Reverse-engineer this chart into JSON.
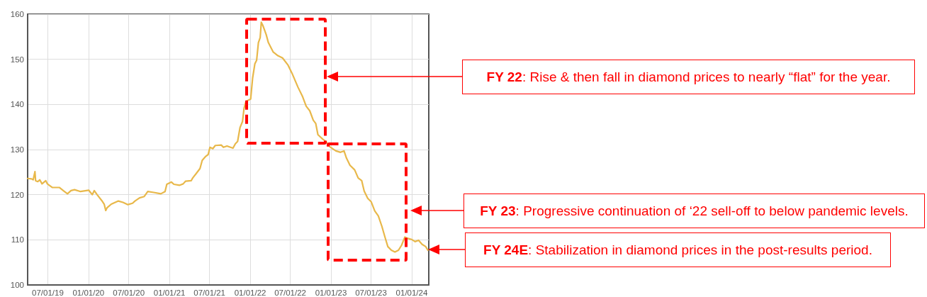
{
  "chart_data": {
    "type": "line",
    "color": "#e8b84a",
    "marker": "none",
    "grid": true,
    "x": [
      "2019-04-01",
      "2019-04-19",
      "2019-04-26",
      "2019-05-04",
      "2019-05-07",
      "2019-05-17",
      "2019-05-26",
      "2019-06-05",
      "2019-06-22",
      "2019-06-29",
      "2019-07-21",
      "2019-08-22",
      "2019-09-12",
      "2019-09-28",
      "2019-10-14",
      "2019-10-30",
      "2019-11-26",
      "2020-01-02",
      "2020-01-18",
      "2020-01-27",
      "2020-02-09",
      "2020-03-01",
      "2020-03-12",
      "2020-03-19",
      "2020-03-25",
      "2020-04-13",
      "2020-05-15",
      "2020-06-05",
      "2020-06-27",
      "2020-07-18",
      "2020-07-29",
      "2020-08-19",
      "2020-09-09",
      "2020-09-25",
      "2020-10-22",
      "2020-11-23",
      "2020-12-12",
      "2020-12-20",
      "2021-01-10",
      "2021-01-21",
      "2021-02-16",
      "2021-03-04",
      "2021-03-15",
      "2021-04-09",
      "2021-04-16",
      "2021-05-02",
      "2021-05-19",
      "2021-05-29",
      "2021-06-14",
      "2021-06-25",
      "2021-07-03",
      "2021-07-16",
      "2021-07-27",
      "2021-08-23",
      "2021-09-02",
      "2021-09-18",
      "2021-10-15",
      "2021-10-26",
      "2021-11-05",
      "2021-11-16",
      "2021-11-27",
      "2021-12-04",
      "2021-12-13",
      "2022-01-03",
      "2022-01-12",
      "2022-01-22",
      "2022-01-30",
      "2022-02-07",
      "2022-02-15",
      "2022-02-20",
      "2022-02-28",
      "2022-03-14",
      "2022-03-24",
      "2022-04-15",
      "2022-05-06",
      "2022-05-27",
      "2022-06-21",
      "2022-07-09",
      "2022-08-05",
      "2022-08-26",
      "2022-09-11",
      "2022-09-27",
      "2022-10-13",
      "2022-10-24",
      "2022-11-03",
      "2022-11-25",
      "2022-12-09",
      "2022-12-27",
      "2023-01-23",
      "2023-02-13",
      "2023-03-01",
      "2023-03-12",
      "2023-03-28",
      "2023-04-18",
      "2023-05-04",
      "2023-05-20",
      "2023-05-31",
      "2023-06-16",
      "2023-07-02",
      "2023-07-18",
      "2023-08-03",
      "2023-08-19",
      "2023-09-02",
      "2023-09-15",
      "2023-10-01",
      "2023-10-17",
      "2023-11-02",
      "2023-11-16",
      "2023-12-01",
      "2023-12-15",
      "2023-12-31",
      "2024-01-16",
      "2024-02-01",
      "2024-02-17",
      "2024-03-04",
      "2024-03-14"
    ],
    "values": [
      123.6,
      123.5,
      123.3,
      125.1,
      123.1,
      122.9,
      123.3,
      122.4,
      123.1,
      122.4,
      121.6,
      121.6,
      120.8,
      120.2,
      120.9,
      121.1,
      120.7,
      121.0,
      120.0,
      120.9,
      120.0,
      118.7,
      117.9,
      116.5,
      117.1,
      117.9,
      118.6,
      118.3,
      117.8,
      118.1,
      118.6,
      119.3,
      119.6,
      120.7,
      120.5,
      120.2,
      120.7,
      122.3,
      122.8,
      122.3,
      122.1,
      122.4,
      123.0,
      123.1,
      123.7,
      124.7,
      125.8,
      127.6,
      128.5,
      128.9,
      130.5,
      130.2,
      130.9,
      131.0,
      130.5,
      130.8,
      130.3,
      131.3,
      131.8,
      134.9,
      136.2,
      139.1,
      140.7,
      141.2,
      145.9,
      149.0,
      149.8,
      153.7,
      154.8,
      158.2,
      157.4,
      155.5,
      153.7,
      151.6,
      150.8,
      150.3,
      148.7,
      146.9,
      143.8,
      141.7,
      139.6,
      138.6,
      136.5,
      135.8,
      133.3,
      132.3,
      131.8,
      130.6,
      129.7,
      129.4,
      129.7,
      128.1,
      126.5,
      125.5,
      123.7,
      123.1,
      120.8,
      119.2,
      118.4,
      116.4,
      115.3,
      113.0,
      110.6,
      108.5,
      107.7,
      107.3,
      107.7,
      108.8,
      110.6,
      110.3,
      110.1,
      109.6,
      109.9,
      109.0,
      108.5,
      107.7
    ],
    "xlim": [
      "2019-04-01",
      "2024-03-18"
    ],
    "ylim": [
      100,
      160
    ],
    "xticks": [
      {
        "value": "2019-07-01",
        "label": "07/01/19"
      },
      {
        "value": "2020-01-01",
        "label": "01/01/20"
      },
      {
        "value": "2020-07-01",
        "label": "07/01/20"
      },
      {
        "value": "2021-01-01",
        "label": "01/01/21"
      },
      {
        "value": "2021-07-01",
        "label": "07/01/21"
      },
      {
        "value": "2022-01-01",
        "label": "01/01/22"
      },
      {
        "value": "2022-07-01",
        "label": "07/01/22"
      },
      {
        "value": "2023-01-01",
        "label": "01/01/23"
      },
      {
        "value": "2023-07-01",
        "label": "07/01/23"
      },
      {
        "value": "2024-01-01",
        "label": "01/01/24"
      }
    ],
    "yticks": [
      100,
      110,
      120,
      130,
      140,
      150,
      160
    ],
    "annotations": [
      "FY 22: Rise & then fall in diamond prices to nearly “flat” for the year.",
      "FY 23: Progressive continuation of ‘22 sell-off to below pandemic levels.",
      "FY 24E: Stabilization in diamond prices in the post-results period."
    ]
  }
}
